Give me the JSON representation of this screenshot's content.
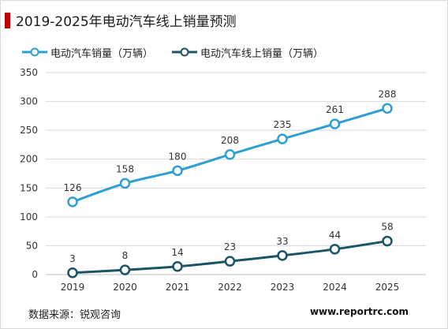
{
  "title": "2019-2025年电动汽车线上销量预测",
  "source": "数据来源：锐观咨询",
  "website": "www.reportrc.com",
  "colors": {
    "accent": "#c00000",
    "series1": "#2e9fd3",
    "series2": "#1b5466",
    "grid": "#d9d9d9"
  },
  "chart_data": {
    "type": "line",
    "x": [
      "2019",
      "2020",
      "2021",
      "2022",
      "2023",
      "2024",
      "2025"
    ],
    "ylim": [
      0,
      350
    ],
    "yticks": [
      0,
      50,
      100,
      150,
      200,
      250,
      300,
      350
    ],
    "grid": true,
    "legend": "top-left",
    "series": [
      {
        "name": "电动汽车销量（万辆）",
        "values": [
          126,
          158,
          180,
          208,
          235,
          261,
          288
        ],
        "color": "#2e9fd3"
      },
      {
        "name": "电动汽车线上销量（万辆）",
        "values": [
          3,
          8,
          14,
          23,
          33,
          44,
          58
        ],
        "color": "#1b5466"
      }
    ]
  }
}
